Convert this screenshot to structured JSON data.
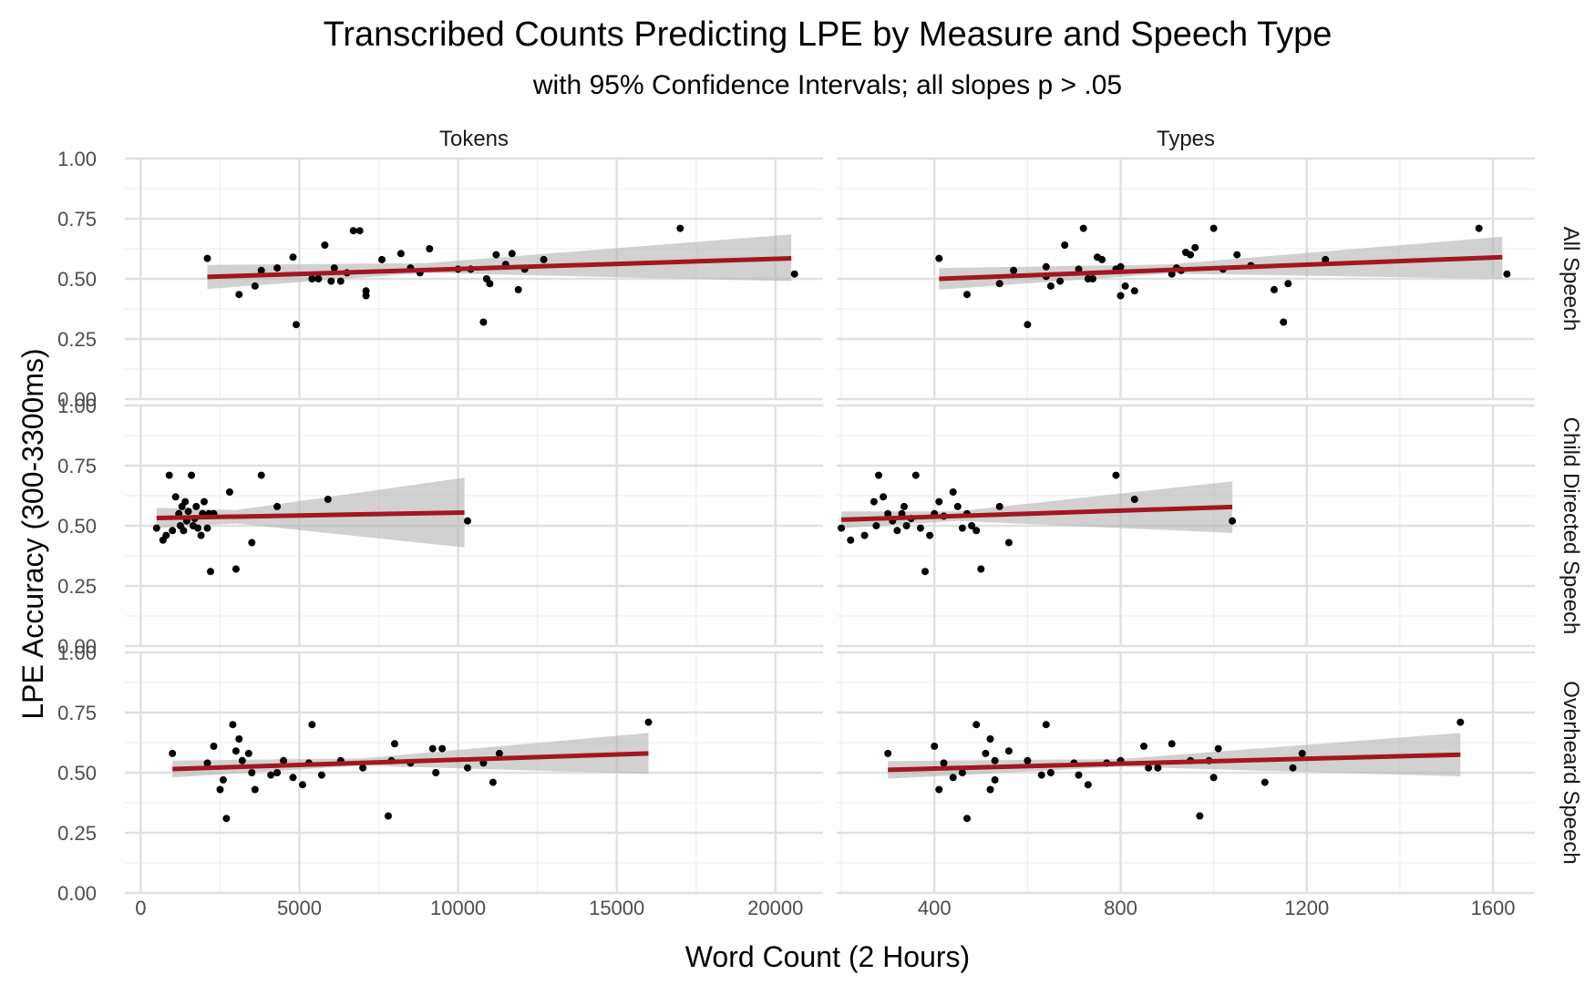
{
  "chart_data": {
    "type": "scatter",
    "title": "Transcribed Counts Predicting LPE by Measure and Speech Type",
    "subtitle": "with 95% Confidence Intervals; all slopes p > .05",
    "xlabel": "Word Count (2 Hours)",
    "ylabel": "LPE Accuracy (300-3300ms)",
    "columns": [
      "Tokens",
      "Types"
    ],
    "rows": [
      "All Speech",
      "Child Directed Speech",
      "Overheard Speech"
    ],
    "ylim": [
      0,
      1
    ],
    "y_ticks": [
      0,
      0.25,
      0.5,
      0.75,
      1
    ],
    "y_tick_labels": [
      "0.00",
      "0.25",
      "0.50",
      "0.75",
      "1.00"
    ],
    "xlim": {
      "Tokens": [
        -500,
        21500
      ],
      "Types": [
        190,
        1690
      ]
    },
    "x_ticks": {
      "Tokens": [
        0,
        5000,
        10000,
        15000,
        20000
      ],
      "Types": [
        400,
        800,
        1200,
        1600
      ]
    },
    "x_tick_labels": {
      "Tokens": [
        "0",
        "5000",
        "10000",
        "15000",
        "20000"
      ],
      "Types": [
        "400",
        "800",
        "1200",
        "1600"
      ]
    },
    "grid": true,
    "point_color": "#000000",
    "line_color": "#a31621",
    "ribbon_color": "#b3b3b3",
    "panels": [
      {
        "column": "Tokens",
        "row": "All Speech",
        "line": {
          "x": [
            2100,
            20500
          ],
          "y": [
            0.508,
            0.585
          ]
        },
        "ci": {
          "x": [
            2100,
            9000,
            20500
          ],
          "lower": [
            0.458,
            0.525,
            0.49
          ],
          "upper": [
            0.558,
            0.565,
            0.685
          ]
        },
        "points": [
          [
            2100,
            0.585
          ],
          [
            3100,
            0.435
          ],
          [
            3600,
            0.47
          ],
          [
            3800,
            0.535
          ],
          [
            4300,
            0.545
          ],
          [
            4800,
            0.59
          ],
          [
            4900,
            0.31
          ],
          [
            5400,
            0.5
          ],
          [
            5600,
            0.5
          ],
          [
            5800,
            0.64
          ],
          [
            6000,
            0.49
          ],
          [
            6100,
            0.545
          ],
          [
            6300,
            0.49
          ],
          [
            6500,
            0.525
          ],
          [
            6700,
            0.7
          ],
          [
            6900,
            0.7
          ],
          [
            7100,
            0.45
          ],
          [
            7100,
            0.43
          ],
          [
            7600,
            0.58
          ],
          [
            8200,
            0.605
          ],
          [
            8500,
            0.545
          ],
          [
            8800,
            0.525
          ],
          [
            9100,
            0.625
          ],
          [
            10000,
            0.54
          ],
          [
            10400,
            0.54
          ],
          [
            10800,
            0.32
          ],
          [
            10900,
            0.5
          ],
          [
            11000,
            0.48
          ],
          [
            11200,
            0.6
          ],
          [
            11500,
            0.56
          ],
          [
            11700,
            0.605
          ],
          [
            11900,
            0.455
          ],
          [
            12100,
            0.54
          ],
          [
            12700,
            0.58
          ],
          [
            17000,
            0.71
          ],
          [
            20600,
            0.52
          ]
        ]
      },
      {
        "column": "Types",
        "row": "All Speech",
        "line": {
          "x": [
            410,
            1620
          ],
          "y": [
            0.5,
            0.59
          ]
        },
        "ci": {
          "x": [
            410,
            900,
            1620
          ],
          "lower": [
            0.455,
            0.522,
            0.5
          ],
          "upper": [
            0.545,
            0.56,
            0.675
          ]
        },
        "points": [
          [
            410,
            0.585
          ],
          [
            470,
            0.435
          ],
          [
            540,
            0.48
          ],
          [
            570,
            0.535
          ],
          [
            600,
            0.31
          ],
          [
            640,
            0.55
          ],
          [
            640,
            0.51
          ],
          [
            650,
            0.47
          ],
          [
            670,
            0.49
          ],
          [
            680,
            0.64
          ],
          [
            710,
            0.54
          ],
          [
            720,
            0.71
          ],
          [
            730,
            0.5
          ],
          [
            740,
            0.5
          ],
          [
            750,
            0.59
          ],
          [
            760,
            0.58
          ],
          [
            790,
            0.54
          ],
          [
            800,
            0.55
          ],
          [
            800,
            0.43
          ],
          [
            810,
            0.47
          ],
          [
            830,
            0.45
          ],
          [
            910,
            0.52
          ],
          [
            920,
            0.545
          ],
          [
            930,
            0.535
          ],
          [
            940,
            0.61
          ],
          [
            950,
            0.6
          ],
          [
            960,
            0.63
          ],
          [
            1000,
            0.71
          ],
          [
            1020,
            0.54
          ],
          [
            1050,
            0.6
          ],
          [
            1080,
            0.555
          ],
          [
            1130,
            0.455
          ],
          [
            1150,
            0.32
          ],
          [
            1160,
            0.48
          ],
          [
            1240,
            0.58
          ],
          [
            1570,
            0.71
          ],
          [
            1630,
            0.52
          ]
        ]
      },
      {
        "column": "Tokens",
        "row": "Child Directed Speech",
        "line": {
          "x": [
            500,
            10200
          ],
          "y": [
            0.532,
            0.555
          ]
        },
        "ci": {
          "x": [
            500,
            3000,
            10200
          ],
          "lower": [
            0.49,
            0.51,
            0.41
          ],
          "upper": [
            0.575,
            0.565,
            0.7
          ]
        },
        "points": [
          [
            500,
            0.49
          ],
          [
            700,
            0.44
          ],
          [
            800,
            0.46
          ],
          [
            900,
            0.71
          ],
          [
            1000,
            0.48
          ],
          [
            1100,
            0.62
          ],
          [
            1200,
            0.55
          ],
          [
            1250,
            0.5
          ],
          [
            1300,
            0.58
          ],
          [
            1350,
            0.48
          ],
          [
            1400,
            0.6
          ],
          [
            1450,
            0.52
          ],
          [
            1500,
            0.56
          ],
          [
            1600,
            0.71
          ],
          [
            1650,
            0.5
          ],
          [
            1700,
            0.53
          ],
          [
            1750,
            0.58
          ],
          [
            1800,
            0.49
          ],
          [
            1900,
            0.46
          ],
          [
            1950,
            0.55
          ],
          [
            2000,
            0.6
          ],
          [
            2100,
            0.49
          ],
          [
            2150,
            0.55
          ],
          [
            2200,
            0.31
          ],
          [
            2300,
            0.55
          ],
          [
            2800,
            0.64
          ],
          [
            3000,
            0.32
          ],
          [
            3500,
            0.43
          ],
          [
            3800,
            0.71
          ],
          [
            4300,
            0.58
          ],
          [
            5900,
            0.61
          ],
          [
            10300,
            0.52
          ]
        ]
      },
      {
        "column": "Types",
        "row": "Child Directed Speech",
        "line": {
          "x": [
            200,
            1040
          ],
          "y": [
            0.525,
            0.578
          ]
        },
        "ci": {
          "x": [
            200,
            450,
            1040
          ],
          "lower": [
            0.49,
            0.52,
            0.47
          ],
          "upper": [
            0.56,
            0.56,
            0.685
          ]
        },
        "points": [
          [
            200,
            0.49
          ],
          [
            220,
            0.44
          ],
          [
            250,
            0.46
          ],
          [
            270,
            0.6
          ],
          [
            275,
            0.5
          ],
          [
            280,
            0.71
          ],
          [
            290,
            0.62
          ],
          [
            300,
            0.55
          ],
          [
            310,
            0.52
          ],
          [
            320,
            0.48
          ],
          [
            330,
            0.55
          ],
          [
            335,
            0.58
          ],
          [
            340,
            0.5
          ],
          [
            350,
            0.53
          ],
          [
            360,
            0.71
          ],
          [
            370,
            0.49
          ],
          [
            380,
            0.31
          ],
          [
            390,
            0.46
          ],
          [
            400,
            0.55
          ],
          [
            410,
            0.6
          ],
          [
            420,
            0.54
          ],
          [
            440,
            0.64
          ],
          [
            450,
            0.58
          ],
          [
            460,
            0.49
          ],
          [
            470,
            0.55
          ],
          [
            480,
            0.5
          ],
          [
            490,
            0.48
          ],
          [
            500,
            0.32
          ],
          [
            540,
            0.58
          ],
          [
            560,
            0.43
          ],
          [
            790,
            0.71
          ],
          [
            830,
            0.61
          ],
          [
            1040,
            0.52
          ]
        ]
      },
      {
        "column": "Tokens",
        "row": "Overheard Speech",
        "line": {
          "x": [
            1000,
            16000
          ],
          "y": [
            0.515,
            0.58
          ]
        },
        "ci": {
          "x": [
            1000,
            7000,
            16000
          ],
          "lower": [
            0.48,
            0.53,
            0.495
          ],
          "upper": [
            0.55,
            0.56,
            0.665
          ]
        },
        "points": [
          [
            1000,
            0.58
          ],
          [
            2100,
            0.54
          ],
          [
            2300,
            0.61
          ],
          [
            2500,
            0.43
          ],
          [
            2600,
            0.47
          ],
          [
            2700,
            0.31
          ],
          [
            2900,
            0.7
          ],
          [
            3000,
            0.59
          ],
          [
            3100,
            0.64
          ],
          [
            3200,
            0.55
          ],
          [
            3400,
            0.58
          ],
          [
            3500,
            0.5
          ],
          [
            3600,
            0.43
          ],
          [
            4100,
            0.49
          ],
          [
            4300,
            0.5
          ],
          [
            4500,
            0.55
          ],
          [
            4800,
            0.48
          ],
          [
            5100,
            0.45
          ],
          [
            5300,
            0.54
          ],
          [
            5400,
            0.7
          ],
          [
            5700,
            0.49
          ],
          [
            6300,
            0.55
          ],
          [
            7000,
            0.52
          ],
          [
            7800,
            0.32
          ],
          [
            7900,
            0.55
          ],
          [
            8000,
            0.62
          ],
          [
            8500,
            0.54
          ],
          [
            9200,
            0.6
          ],
          [
            9300,
            0.5
          ],
          [
            9500,
            0.6
          ],
          [
            10300,
            0.52
          ],
          [
            10800,
            0.54
          ],
          [
            11100,
            0.46
          ],
          [
            11300,
            0.58
          ],
          [
            16000,
            0.71
          ]
        ]
      },
      {
        "column": "Types",
        "row": "Overheard Speech",
        "line": {
          "x": [
            300,
            1530
          ],
          "y": [
            0.512,
            0.575
          ]
        },
        "ci": {
          "x": [
            300,
            800,
            1530
          ],
          "lower": [
            0.475,
            0.525,
            0.485
          ],
          "upper": [
            0.548,
            0.557,
            0.665
          ]
        },
        "points": [
          [
            300,
            0.58
          ],
          [
            400,
            0.61
          ],
          [
            410,
            0.43
          ],
          [
            420,
            0.54
          ],
          [
            440,
            0.48
          ],
          [
            460,
            0.5
          ],
          [
            470,
            0.31
          ],
          [
            490,
            0.7
          ],
          [
            510,
            0.58
          ],
          [
            520,
            0.64
          ],
          [
            520,
            0.43
          ],
          [
            530,
            0.55
          ],
          [
            530,
            0.47
          ],
          [
            560,
            0.59
          ],
          [
            600,
            0.55
          ],
          [
            630,
            0.49
          ],
          [
            640,
            0.7
          ],
          [
            650,
            0.5
          ],
          [
            700,
            0.54
          ],
          [
            710,
            0.49
          ],
          [
            730,
            0.45
          ],
          [
            770,
            0.54
          ],
          [
            800,
            0.55
          ],
          [
            850,
            0.61
          ],
          [
            860,
            0.52
          ],
          [
            880,
            0.52
          ],
          [
            910,
            0.62
          ],
          [
            950,
            0.55
          ],
          [
            970,
            0.32
          ],
          [
            990,
            0.55
          ],
          [
            1000,
            0.48
          ],
          [
            1010,
            0.6
          ],
          [
            1110,
            0.46
          ],
          [
            1170,
            0.52
          ],
          [
            1190,
            0.58
          ],
          [
            1530,
            0.71
          ]
        ]
      }
    ]
  }
}
